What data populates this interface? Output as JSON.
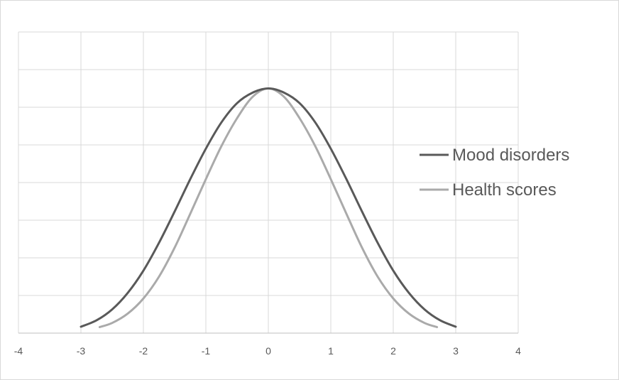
{
  "chart_data": {
    "type": "line",
    "title": "",
    "xlabel": "",
    "ylabel": "",
    "xlim": [
      -4,
      4
    ],
    "ylim": [
      0,
      0.8
    ],
    "grid": true,
    "legend_position": "right",
    "x_ticks": [
      "-4",
      "-3",
      "-2",
      "-1",
      "0",
      "1",
      "2",
      "3",
      "4"
    ],
    "series": [
      {
        "name": "Mood disorders",
        "color": "#595959",
        "x": [
          -3,
          -2.75,
          -2.5,
          -2.25,
          -2,
          -1.75,
          -1.5,
          -1.25,
          -1,
          -0.75,
          -0.5,
          -0.25,
          0,
          0.25,
          0.5,
          0.75,
          1,
          1.25,
          1.5,
          1.75,
          2,
          2.25,
          2.5,
          2.75,
          3
        ],
        "y": [
          0.017,
          0.034,
          0.063,
          0.107,
          0.166,
          0.24,
          0.323,
          0.409,
          0.49,
          0.56,
          0.611,
          0.639,
          0.65,
          0.639,
          0.611,
          0.56,
          0.49,
          0.409,
          0.323,
          0.24,
          0.166,
          0.107,
          0.063,
          0.034,
          0.017
        ]
      },
      {
        "name": "Health scores",
        "color": "#aaaaaa",
        "x": [
          -2.7,
          -2.5,
          -2.25,
          -2,
          -1.75,
          -1.5,
          -1.25,
          -1,
          -0.75,
          -0.5,
          -0.25,
          0,
          0.25,
          0.5,
          0.75,
          1,
          1.25,
          1.5,
          1.75,
          2,
          2.25,
          2.5,
          2.7
        ],
        "y": [
          0.016,
          0.027,
          0.052,
          0.092,
          0.15,
          0.227,
          0.317,
          0.409,
          0.497,
          0.571,
          0.628,
          0.65,
          0.628,
          0.571,
          0.497,
          0.409,
          0.317,
          0.227,
          0.15,
          0.092,
          0.052,
          0.027,
          0.016
        ]
      }
    ]
  }
}
